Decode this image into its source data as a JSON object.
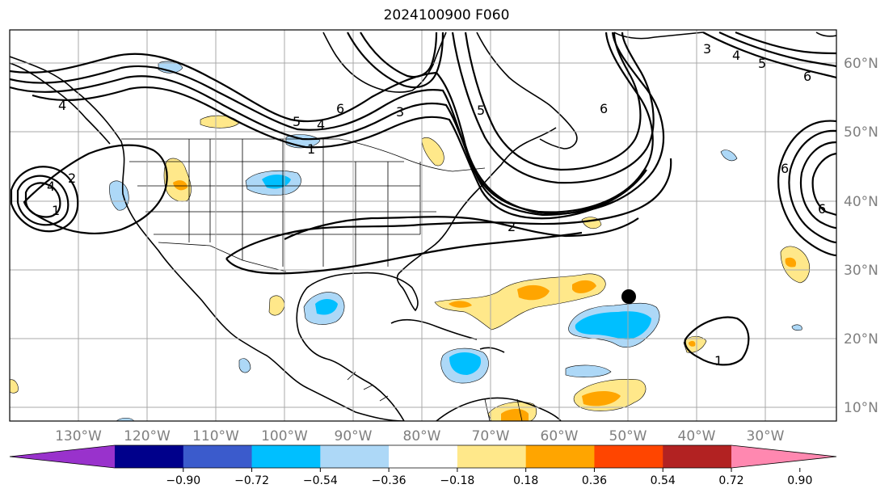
{
  "title": "2024100900 F060",
  "lat_labels": [
    "60°N",
    "50°N",
    "40°N",
    "30°N",
    "20°N",
    "10°N"
  ],
  "lon_labels": [
    "130°W",
    "120°W",
    "110°W",
    "100°W",
    "90°W",
    "80°W",
    "70°W",
    "60°W",
    "50°W",
    "40°W",
    "30°W"
  ],
  "colorbar": {
    "tick_labels": [
      "−0.90",
      "−0.72",
      "−0.54",
      "−0.36",
      "−0.18",
      "0.18",
      "0.36",
      "0.54",
      "0.72",
      "0.90"
    ],
    "colors": [
      "#9932cc",
      "#00008b",
      "#3b5bcc",
      "#00bfff",
      "#add8f7",
      "#ffffff",
      "#ffe88a",
      "#ffa500",
      "#ff4500",
      "#b22222",
      "#ff88b0"
    ]
  },
  "contour_labels": [
    "1",
    "2",
    "3",
    "4",
    "5",
    "6",
    "1",
    "2",
    "4",
    "6",
    "6",
    "6",
    "5",
    "4",
    "3",
    "1",
    "4",
    "6",
    "5"
  ],
  "marker": "black-dot",
  "grid": "on"
}
